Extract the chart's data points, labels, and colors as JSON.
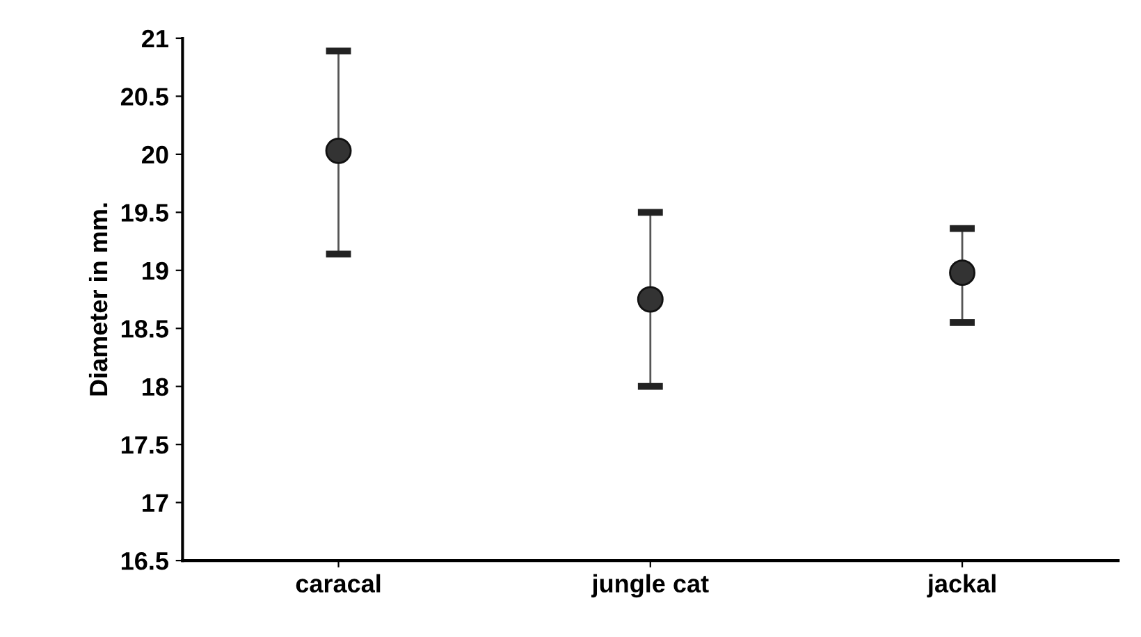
{
  "chart_data": {
    "type": "scatter",
    "ylabel": "Diameter in mm.",
    "categories": [
      "caracal",
      "jungle cat",
      "jackal"
    ],
    "values": [
      20.03,
      18.75,
      18.98
    ],
    "errors": [
      [
        19.14,
        20.89
      ],
      [
        18.0,
        19.5
      ],
      [
        18.55,
        19.36
      ]
    ],
    "color": "#333333",
    "marker": "circle",
    "ylim": [
      16.5,
      21
    ],
    "yticks": [
      16.5,
      17,
      17.5,
      18,
      18.5,
      19,
      19.5,
      20,
      20.5,
      21
    ],
    "grid": false,
    "legend": false
  }
}
